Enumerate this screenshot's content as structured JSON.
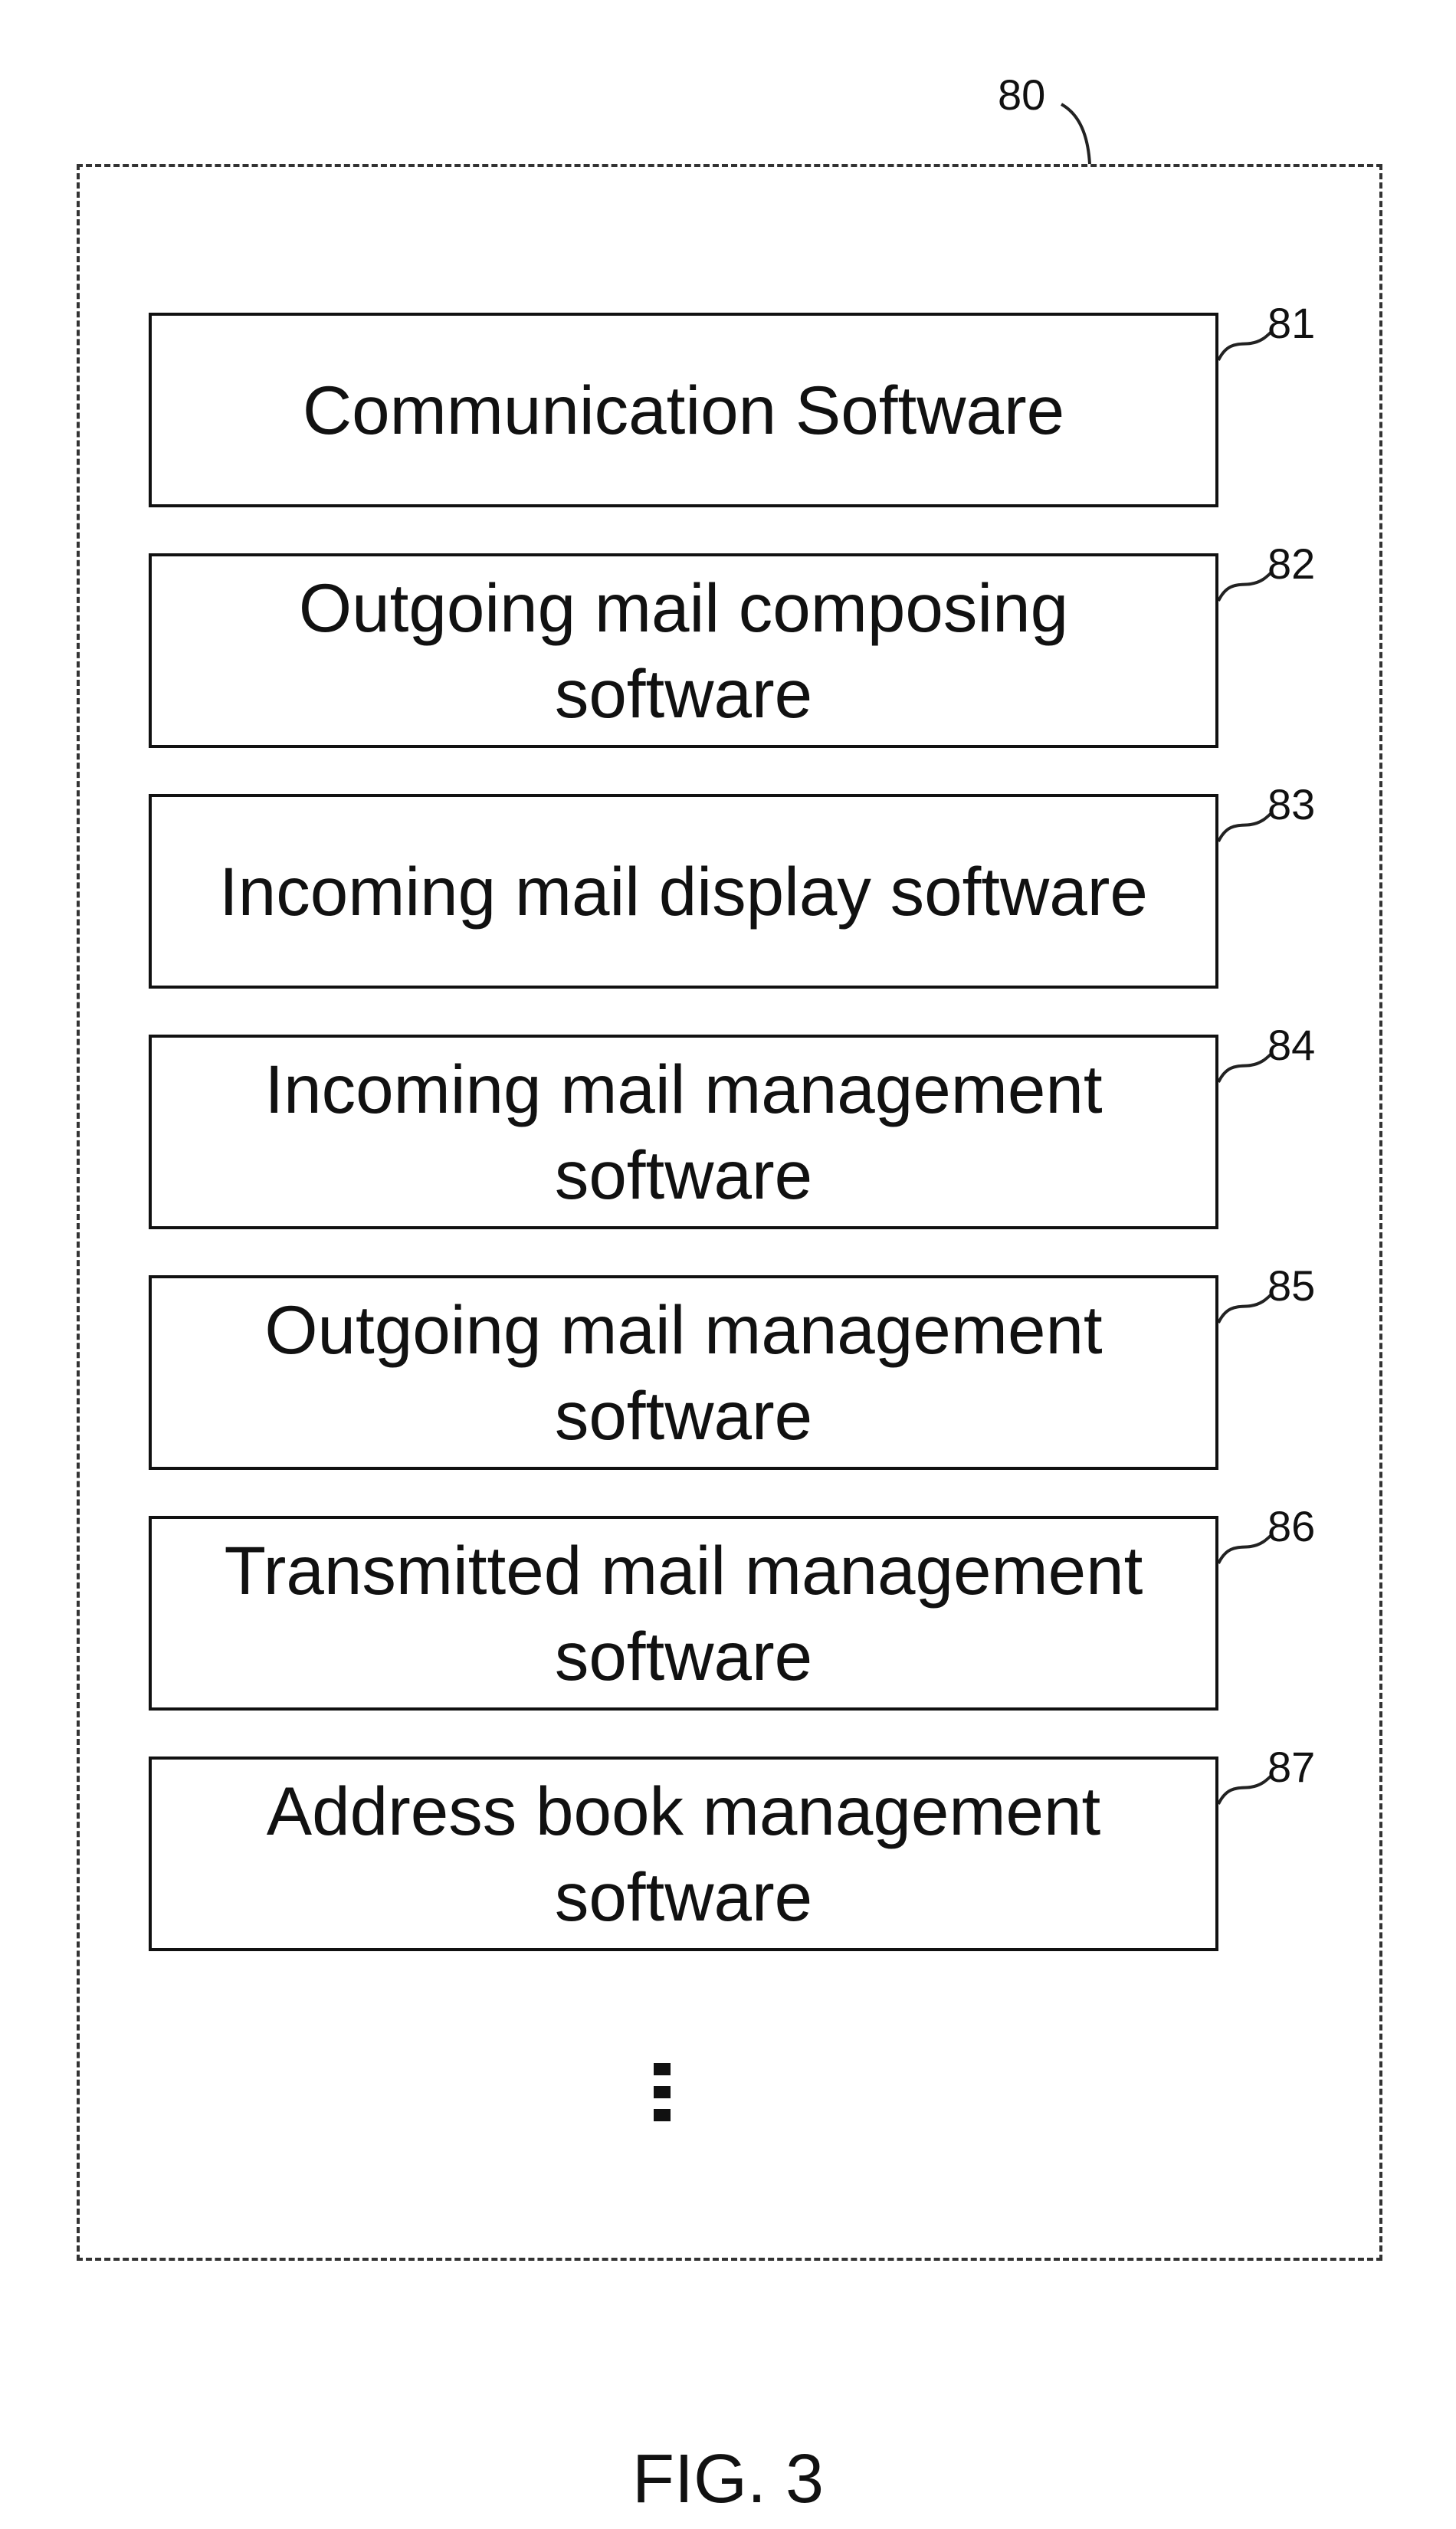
{
  "figure": {
    "container_ref": "80",
    "caption": "FIG. 3",
    "blocks": [
      {
        "ref": "81",
        "label": "Communication Software"
      },
      {
        "ref": "82",
        "label": "Outgoing mail composing\nsoftware"
      },
      {
        "ref": "83",
        "label": "Incoming mail display software"
      },
      {
        "ref": "84",
        "label": "Incoming mail management\nsoftware"
      },
      {
        "ref": "85",
        "label": "Outgoing mail management\nsoftware"
      },
      {
        "ref": "86",
        "label": "Transmitted mail management\nsoftware"
      },
      {
        "ref": "87",
        "label": "Address book management\nsoftware"
      }
    ]
  }
}
